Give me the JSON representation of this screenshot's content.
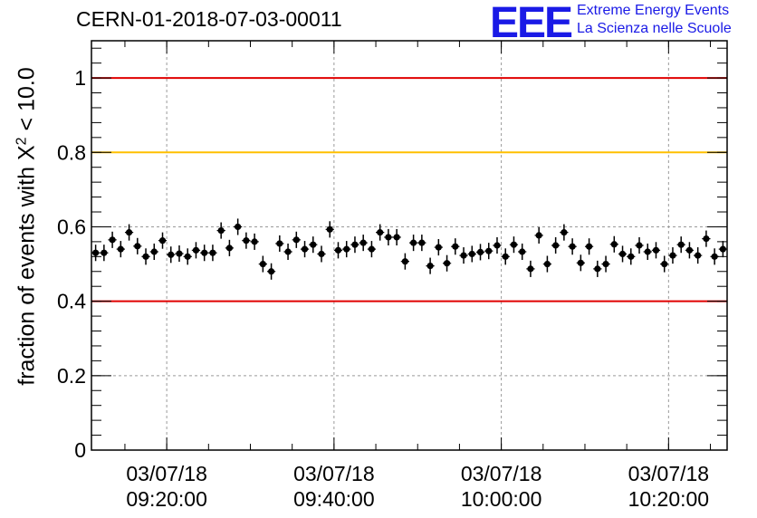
{
  "header": {
    "run_title": "CERN-01-2018-07-03-00011",
    "logo_text": "EEE",
    "brand_line1": "Extreme Energy Events",
    "brand_line2": "La Scienza nelle Scuole"
  },
  "colors": {
    "threshold_red": "#e00000",
    "threshold_orange": "#ffc000",
    "logo_blue": "#1a1ae6",
    "markers": "#000000"
  },
  "chart_data": {
    "type": "scatter",
    "ylabel_main": "fraction of events with X",
    "ylabel_sup": "2",
    "ylabel_tail": " < 10.0",
    "xlabel": "",
    "ylim": [
      0,
      1.1
    ],
    "xlim": [
      "2018-07-03 09:11:00",
      "2018-07-03 10:27:00"
    ],
    "yticks": [
      {
        "value": 0,
        "label": "0"
      },
      {
        "value": 0.2,
        "label": "0.2"
      },
      {
        "value": 0.4,
        "label": "0.4"
      },
      {
        "value": 0.6,
        "label": "0.6"
      },
      {
        "value": 0.8,
        "label": "0.8"
      },
      {
        "value": 1.0,
        "label": "1"
      }
    ],
    "xticks": [
      {
        "value": "2018-07-03 09:20:00",
        "date": "03/07/18",
        "time": "09:20:00"
      },
      {
        "value": "2018-07-03 09:40:00",
        "date": "03/07/18",
        "time": "09:40:00"
      },
      {
        "value": "2018-07-03 10:00:00",
        "date": "03/07/18",
        "time": "10:00:00"
      },
      {
        "value": "2018-07-03 10:20:00",
        "date": "03/07/18",
        "time": "10:20:00"
      }
    ],
    "grid": true,
    "reference_lines": [
      {
        "y": 1.0,
        "color": "#e00000"
      },
      {
        "y": 0.8,
        "color": "#ffc000"
      },
      {
        "y": 0.4,
        "color": "#e00000"
      }
    ],
    "series": [
      {
        "x": [
          "09:11:30",
          "09:12:30",
          "09:13:30",
          "09:14:30",
          "09:15:30",
          "09:16:30",
          "09:17:30",
          "09:18:30",
          "09:19:30",
          "09:20:30",
          "09:21:30",
          "09:22:30",
          "09:23:30",
          "09:24:30",
          "09:25:30",
          "09:26:30",
          "09:27:30",
          "09:28:30",
          "09:29:30",
          "09:30:30",
          "09:31:30",
          "09:32:30",
          "09:33:30",
          "09:34:30",
          "09:35:30",
          "09:36:30",
          "09:37:30",
          "09:38:30",
          "09:39:30",
          "09:40:30",
          "09:41:30",
          "09:42:30",
          "09:43:30",
          "09:44:30",
          "09:45:30",
          "09:46:30",
          "09:47:30",
          "09:48:30",
          "09:49:30",
          "09:50:30",
          "09:51:30",
          "09:52:30",
          "09:53:30",
          "09:54:30",
          "09:55:30",
          "09:56:30",
          "09:57:30",
          "09:58:30",
          "09:59:30",
          "10:00:30",
          "10:01:30",
          "10:02:30",
          "10:03:30",
          "10:04:30",
          "10:05:30",
          "10:06:30",
          "10:07:30",
          "10:08:30",
          "10:09:30",
          "10:10:30",
          "10:11:30",
          "10:12:30",
          "10:13:30",
          "10:14:30",
          "10:15:30",
          "10:16:30",
          "10:17:30",
          "10:18:30",
          "10:19:30",
          "10:20:30",
          "10:21:30",
          "10:22:30",
          "10:23:30",
          "10:24:30",
          "10:25:30",
          "10:26:30"
        ],
        "y": [
          0.53,
          0.53,
          0.565,
          0.54,
          0.585,
          0.548,
          0.52,
          0.533,
          0.563,
          0.525,
          0.528,
          0.52,
          0.537,
          0.53,
          0.53,
          0.59,
          0.543,
          0.6,
          0.563,
          0.56,
          0.5,
          0.48,
          0.555,
          0.533,
          0.565,
          0.54,
          0.552,
          0.527,
          0.593,
          0.537,
          0.54,
          0.552,
          0.557,
          0.54,
          0.585,
          0.572,
          0.572,
          0.507,
          0.557,
          0.557,
          0.495,
          0.545,
          0.502,
          0.547,
          0.523,
          0.527,
          0.532,
          0.535,
          0.55,
          0.52,
          0.552,
          0.533,
          0.487,
          0.577,
          0.5,
          0.55,
          0.585,
          0.547,
          0.503,
          0.547,
          0.487,
          0.5,
          0.553,
          0.527,
          0.52,
          0.55,
          0.533,
          0.537,
          0.5,
          0.523,
          0.552,
          0.537,
          0.523,
          0.568,
          0.52,
          0.54
        ],
        "err": 0.022
      }
    ]
  }
}
